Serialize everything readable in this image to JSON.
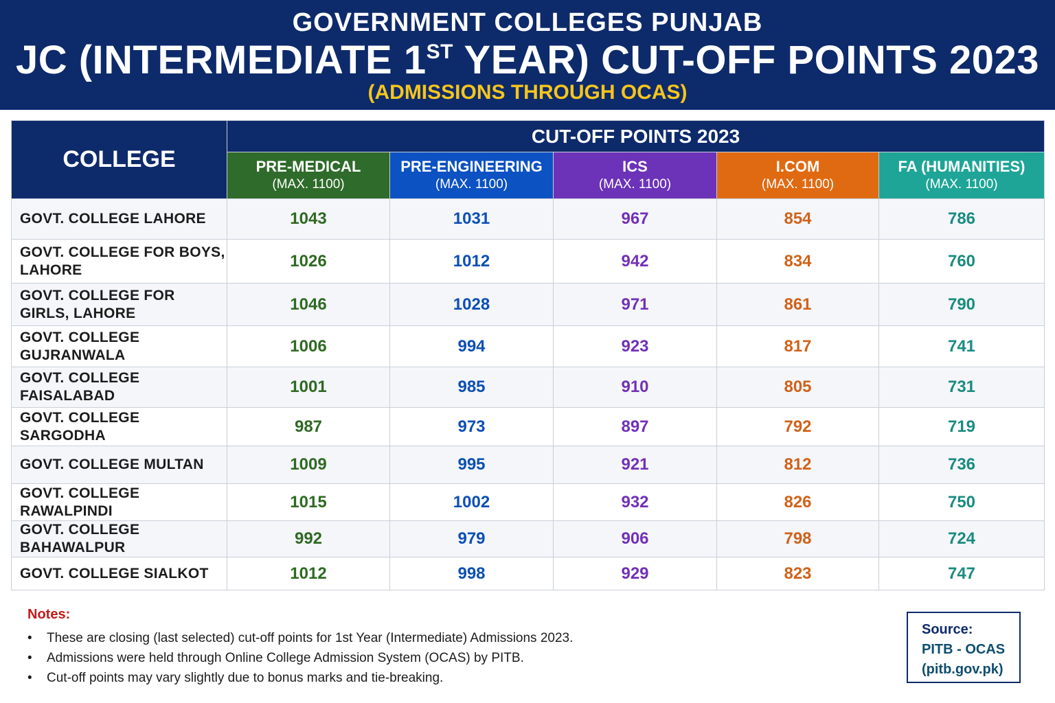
{
  "header": {
    "line1": "GOVERNMENT COLLEGES PUNJAB",
    "line2_pre": "JC (INTERMEDIATE 1",
    "line2_sup": "ST",
    "line2_post": " YEAR) CUT-OFF POINTS 2023",
    "line3": "(ADMISSIONS THROUGH OCAS)"
  },
  "table": {
    "college_header": "COLLEGE",
    "group_header": "CUT-OFF POINTS 2023",
    "streams": [
      {
        "name": "PRE-MEDICAL",
        "max": "(MAX. 1100)",
        "color": "#2f6b2a"
      },
      {
        "name": "PRE-ENGINEERING",
        "max": "(MAX. 1100)",
        "color": "#0c52c2"
      },
      {
        "name": "ICS",
        "max": "(MAX. 1100)",
        "color": "#6c33b8"
      },
      {
        "name": "I.COM",
        "max": "(MAX. 1100)",
        "color": "#e06a12"
      },
      {
        "name": "FA (HUMANITIES)",
        "max": "(MAX. 1100)",
        "color": "#1ea597"
      }
    ],
    "rows": [
      {
        "college": "GOVT. COLLEGE LAHORE",
        "values": [
          "1043",
          "1031",
          "967",
          "854",
          "786"
        ]
      },
      {
        "college": "GOVT. COLLEGE FOR BOYS, LAHORE",
        "values": [
          "1026",
          "1012",
          "942",
          "834",
          "760"
        ]
      },
      {
        "college": "GOVT. COLLEGE FOR GIRLS, LAHORE",
        "values": [
          "1046",
          "1028",
          "971",
          "861",
          "790"
        ]
      },
      {
        "college": "GOVT. COLLEGE GUJRANWALA",
        "values": [
          "1006",
          "994",
          "923",
          "817",
          "741"
        ]
      },
      {
        "college": "GOVT. COLLEGE FAISALABAD",
        "values": [
          "1001",
          "985",
          "910",
          "805",
          "731"
        ]
      },
      {
        "college": "GOVT. COLLEGE SARGODHA",
        "values": [
          "987",
          "973",
          "897",
          "792",
          "719"
        ]
      },
      {
        "college": "GOVT. COLLEGE MULTAN",
        "values": [
          "1009",
          "995",
          "921",
          "812",
          "736"
        ]
      },
      {
        "college": "GOVT. COLLEGE RAWALPINDI",
        "values": [
          "1015",
          "1002",
          "932",
          "826",
          "750"
        ]
      },
      {
        "college": "GOVT. COLLEGE BAHAWALPUR",
        "values": [
          "992",
          "979",
          "906",
          "798",
          "724"
        ]
      },
      {
        "college": "GOVT. COLLEGE SIALKOT",
        "values": [
          "1012",
          "998",
          "929",
          "823",
          "747"
        ]
      }
    ]
  },
  "notes": {
    "title": "Notes:",
    "bullet_glyph": "•",
    "items": [
      "These are closing (last selected) cut-off points for 1st Year (Intermediate) Admissions 2023.",
      "Admissions were held through Online College Admission System (OCAS) by PITB.",
      "Cut-off points may vary slightly due to bonus marks and tie-breaking."
    ]
  },
  "source": {
    "label": "Source:",
    "line1": "PITB - OCAS",
    "line2": "(pitb.gov.pk)"
  },
  "colors": {
    "navy": "#0d2a6b",
    "subtitle_gold": "#f5c51c",
    "notes_red": "#c41a1a"
  }
}
